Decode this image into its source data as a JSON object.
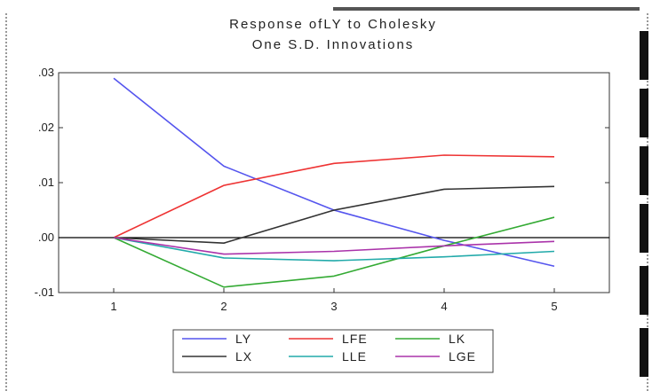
{
  "chart_data": {
    "type": "line",
    "title": "Response ofLY to Cholesky",
    "subtitle": "One S.D. Innovations",
    "x": [
      1,
      2,
      3,
      4,
      5
    ],
    "x_tick_labels": [
      "1",
      "2",
      "3",
      "4",
      "5"
    ],
    "y_tick_labels": [
      ".03",
      ".02",
      ".01",
      ".00",
      "-.01"
    ],
    "y_ticks": [
      0.03,
      0.02,
      0.01,
      0.0,
      -0.01
    ],
    "ylim": [
      -0.01,
      0.03
    ],
    "xlim": [
      0.5,
      5.5
    ],
    "grid": false,
    "zero_line": true,
    "legend_position": "bottom",
    "series": [
      {
        "name": "LY",
        "color": "#5555ee",
        "values": [
          0.029,
          0.013,
          0.005,
          -0.0005,
          -0.0052
        ]
      },
      {
        "name": "LFE",
        "color": "#ee3333",
        "values": [
          0.0,
          0.0095,
          0.0135,
          0.015,
          0.0147
        ]
      },
      {
        "name": "LK",
        "color": "#33aa33",
        "values": [
          0.0,
          -0.009,
          -0.007,
          -0.0015,
          0.0037
        ]
      },
      {
        "name": "LX",
        "color": "#333333",
        "values": [
          0.0,
          -0.001,
          0.005,
          0.0088,
          0.0093
        ]
      },
      {
        "name": "LLE",
        "color": "#22aaaa",
        "values": [
          0.0,
          -0.0037,
          -0.0042,
          -0.0035,
          -0.0025
        ]
      },
      {
        "name": "LGE",
        "color": "#aa33aa",
        "values": [
          0.0,
          -0.003,
          -0.0025,
          -0.0015,
          -0.0007
        ]
      }
    ],
    "legend_rows": [
      [
        "LY",
        "LFE",
        "LK"
      ],
      [
        "LX",
        "LLE",
        "LGE"
      ]
    ]
  }
}
